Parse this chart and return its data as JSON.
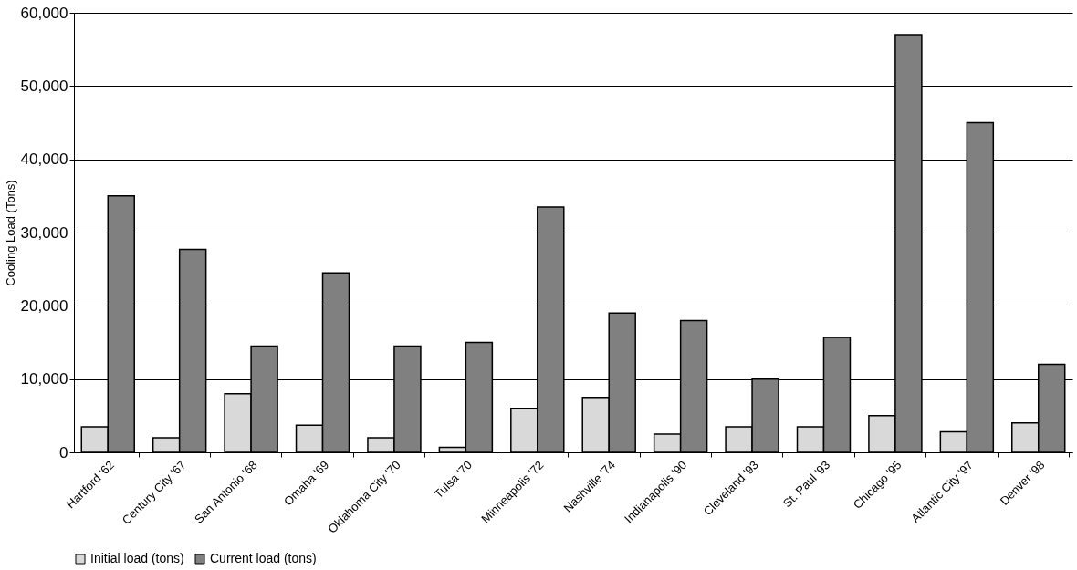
{
  "chart_data": {
    "type": "bar",
    "ylabel": "Cooling Load (Tons)",
    "categories": [
      "Hartford '62",
      "Century City '67",
      "San Antonio '68",
      "Omaha '69",
      "Oklahoma City '70",
      "Tulsa '70",
      "Minneapolis '72",
      "Nashville '74",
      "Indianapolis '90",
      "Cleveland '93",
      "St. Paul '93",
      "Chicago '95",
      "Atlantic City '97",
      "Denver '98"
    ],
    "series": [
      {
        "name": "Initial load (tons)",
        "color": "#d9d9d9",
        "values": [
          3500,
          2000,
          8000,
          3700,
          2000,
          700,
          6000,
          7500,
          2500,
          3500,
          3500,
          5000,
          2800,
          4000
        ]
      },
      {
        "name": "Current load (tons)",
        "color": "#808080",
        "values": [
          35000,
          27700,
          14500,
          24500,
          14500,
          15000,
          33500,
          19000,
          18000,
          10000,
          15700,
          57000,
          45000,
          12000
        ]
      }
    ],
    "ylim": [
      0,
      60000
    ],
    "yticks": [
      0,
      {
        "value": 10000,
        "label": "10,000"
      },
      {
        "value": 20000,
        "label": "20,000"
      },
      {
        "value": 30000,
        "label": "30,000"
      },
      {
        "value": 40000,
        "label": "40,000"
      },
      {
        "value": 50000,
        "label": "50,000"
      },
      {
        "value": 60000,
        "label": "60,000"
      }
    ],
    "grid": "y",
    "legend": "bottom"
  }
}
